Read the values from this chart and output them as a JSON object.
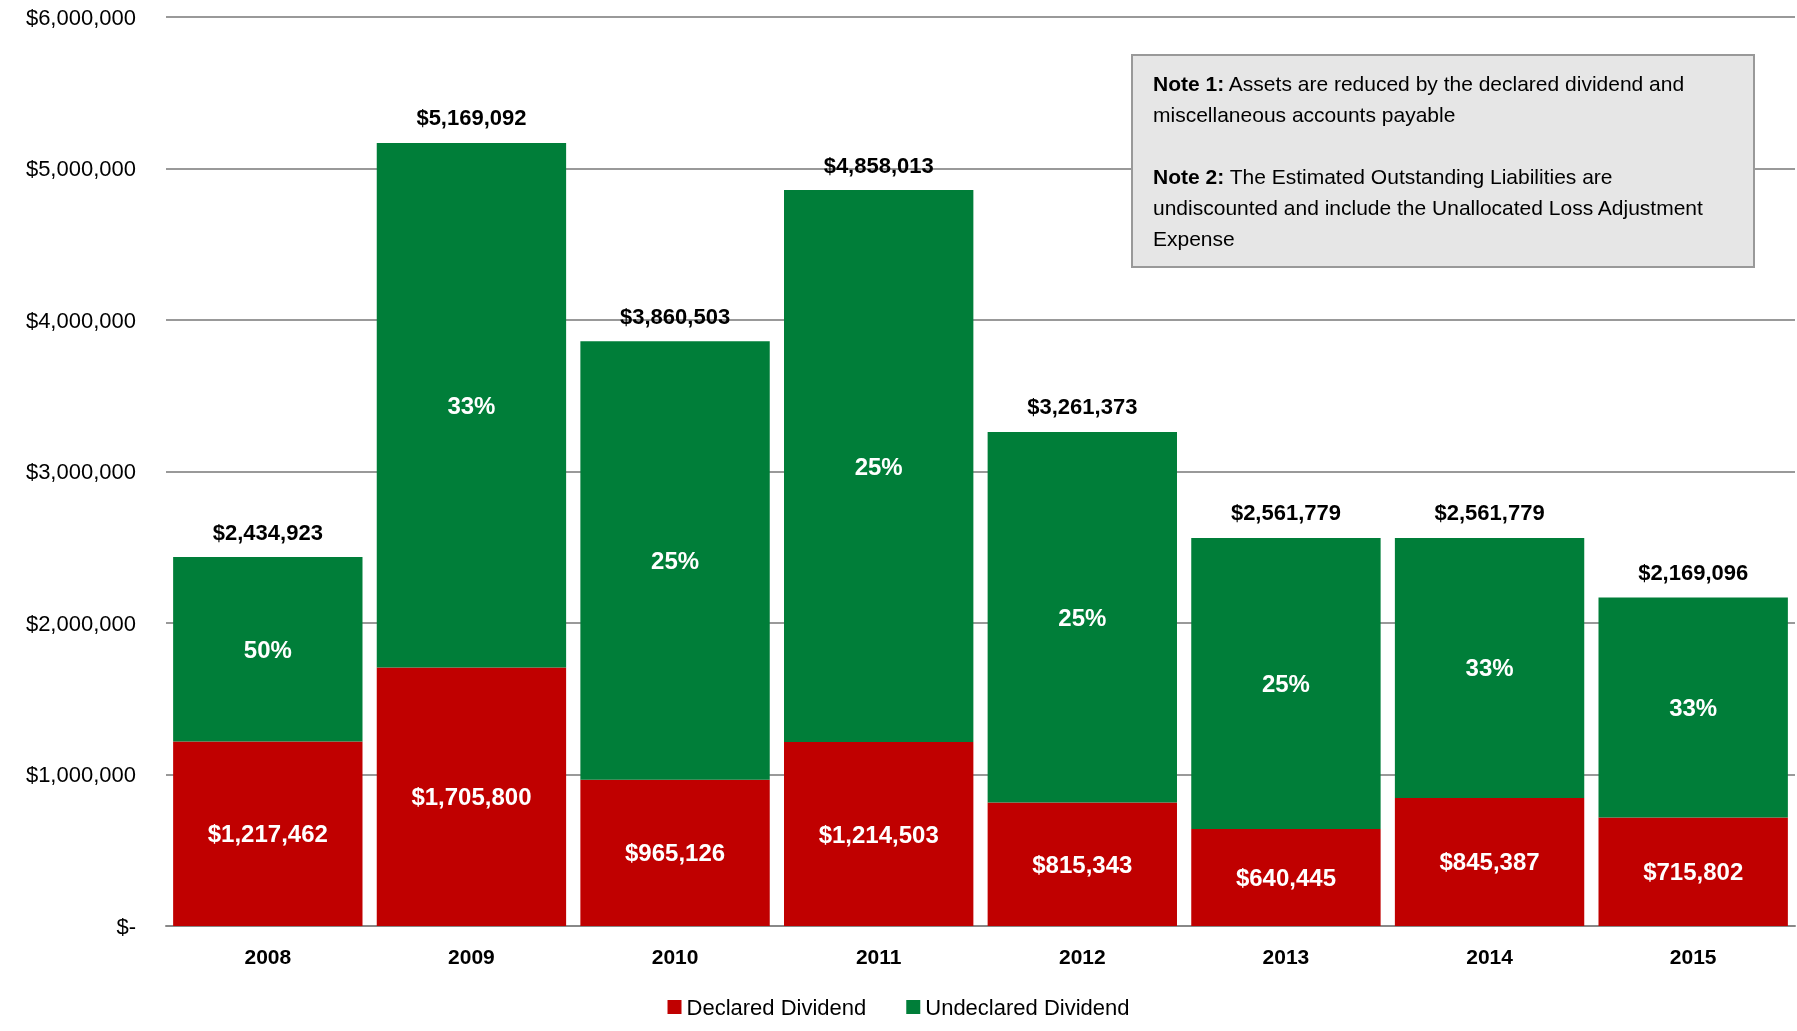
{
  "chart_data": {
    "type": "bar",
    "stacked": true,
    "categories": [
      "2008",
      "2009",
      "2010",
      "2011",
      "2012",
      "2013",
      "2014",
      "2015"
    ],
    "series": [
      {
        "name": "Declared Dividend",
        "color": "#c00000",
        "values": [
          1217462,
          1705800,
          965126,
          1214503,
          815343,
          640445,
          845387,
          715802
        ],
        "value_labels": [
          "$1,217,462",
          "$1,705,800",
          "$965,126",
          "$1,214,503",
          "$815,343",
          "$640,445",
          "$845,387",
          "$715,802"
        ]
      },
      {
        "name": "Undeclared Dividend",
        "color": "#007e39",
        "values": [
          1217461,
          3463292,
          2895377,
          3643510,
          2446030,
          1921334,
          1716392,
          1453294
        ]
      }
    ],
    "totals": [
      "$2,434,923",
      "$5,169,092",
      "$3,860,503",
      "$4,858,013",
      "$3,261,373",
      "$2,561,779",
      "$2,561,779",
      "$2,169,096"
    ],
    "ylim": [
      0,
      6000000
    ],
    "yticks": [
      {
        "value": 0,
        "label": "$-"
      },
      {
        "value": 1000000,
        "label": "$1,000,000"
      },
      {
        "value": 2000000,
        "label": "$2,000,000"
      },
      {
        "value": 3000000,
        "label": "$3,000,000"
      },
      {
        "value": 4000000,
        "label": "$4,000,000"
      },
      {
        "value": 5000000,
        "label": "$5,000,000"
      },
      {
        "value": 6000000,
        "label": "$6,000,000"
      }
    ],
    "grid": "y",
    "legend": "bottom",
    "annotations": [
      "50%",
      "33%",
      "25%",
      "25%",
      "25%",
      "25%",
      "33%",
      "33%",
      "Note 1:  Assets are reduced by the declared dividend and miscellaneous accounts payable",
      "Note 2:  The Estimated Outstanding Liabilities are undiscounted and include the Unallocated Loss Adjustment Expense"
    ]
  }
}
